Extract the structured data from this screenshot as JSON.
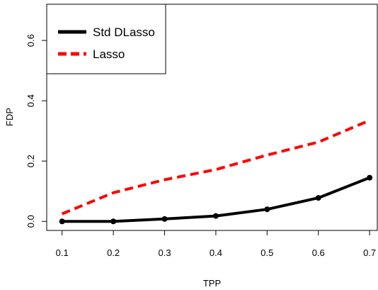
{
  "chart_data": {
    "type": "line",
    "xlabel": "TPP",
    "ylabel": "FDP",
    "xlim": [
      0.07,
      0.715
    ],
    "ylim": [
      -0.03,
      0.72
    ],
    "x_ticks": [
      "0.1",
      "0.2",
      "0.3",
      "0.4",
      "0.5",
      "0.6",
      "0.7"
    ],
    "y_ticks": [
      "0.0",
      "0.2",
      "0.4",
      "0.6"
    ],
    "legend_position": "top-left",
    "grid": false,
    "x": [
      0.1,
      0.2,
      0.3,
      0.4,
      0.5,
      0.6,
      0.7
    ],
    "series": [
      {
        "name": "Std DLasso",
        "values": [
          0.0,
          0.0,
          0.008,
          0.018,
          0.04,
          0.078,
          0.145
        ],
        "color": "#000000",
        "style": "solid",
        "markers": true
      },
      {
        "name": "Lasso",
        "values": [
          0.025,
          0.095,
          0.138,
          0.172,
          0.22,
          0.263,
          0.335
        ],
        "color": "#ff0000",
        "style": "dashed",
        "markers": false
      }
    ]
  }
}
